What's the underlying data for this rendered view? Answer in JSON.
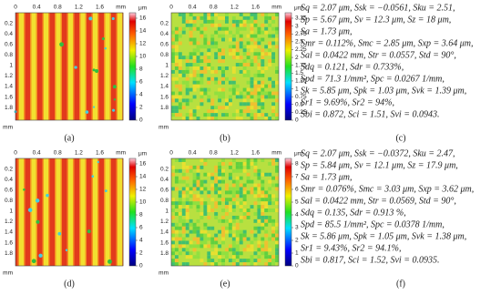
{
  "panels": [
    {
      "caption": "(a)",
      "x_ticks": [
        "0",
        "0.4",
        "0.8",
        "1.2",
        "1.6"
      ],
      "x_unit": "mm",
      "y_ticks": [
        "0.2",
        "0.4",
        "0.6",
        "0.8",
        "1",
        "1.2",
        "1.4",
        "1.6",
        "1.8"
      ],
      "y_unit": "mm",
      "colorbar": {
        "unit": "μm",
        "ticks": [
          "16",
          "14",
          "12",
          "10",
          "8",
          "6",
          "4",
          "2",
          "0"
        ]
      }
    },
    {
      "caption": "(b)",
      "x_ticks": [
        "0",
        "0.4",
        "0.8",
        "1.2",
        "1.6"
      ],
      "x_unit": "mm",
      "y_ticks": [
        "0.2",
        "0.4",
        "0.6",
        "0.8",
        "1",
        "1.2",
        "1.4",
        "1.6",
        "1.8"
      ],
      "y_unit": "mm",
      "colorbar": {
        "unit": "μm",
        "ticks": [
          "3.25",
          "3",
          "2.75",
          "2.5",
          "2.25",
          "2",
          "1.75",
          "1.5",
          "1.25",
          "1",
          "0.75",
          "0.5",
          "0.25",
          "0"
        ]
      }
    },
    {
      "caption": "(d)",
      "x_ticks": [
        "0",
        "0.4",
        "0.8",
        "1.2",
        "1.6"
      ],
      "x_unit": "mm",
      "y_ticks": [
        "0.2",
        "0.4",
        "0.6",
        "0.8",
        "1",
        "1.2",
        "1.4",
        "1.6",
        "1.8"
      ],
      "y_unit": "mm",
      "colorbar": {
        "unit": "μm",
        "ticks": [
          "16",
          "14",
          "12",
          "10",
          "8",
          "6",
          "4",
          "2",
          "0"
        ]
      }
    },
    {
      "caption": "(e)",
      "x_ticks": [
        "0",
        "0.4",
        "0.8",
        "1.2",
        "1.6"
      ],
      "x_unit": "mm",
      "y_ticks": [
        "0.2",
        "0.4",
        "0.6",
        "0.8",
        "1",
        "1.2",
        "1.4",
        "1.6",
        "1.8"
      ],
      "y_unit": "mm",
      "colorbar": {
        "unit": "μm",
        "ticks": [
          "8",
          "7",
          "6",
          "5",
          "4",
          "3",
          "2",
          "1",
          "0"
        ]
      }
    }
  ],
  "parameters": [
    {
      "caption": "(c)",
      "lines": [
        "Sq = 2.07 μm, Ssk = −0.0561, Sku = 2.51,",
        "Sp = 5.67 μm, Sv = 12.3 μm, Sz = 18 μm,",
        "Sa = 1.73 μm,",
        "Smr = 0.112%, Smc = 2.85 μm, Sxp = 3.64 μm,",
        "Sal = 0.0422 mm, Str = 0.0557, Std = 90°,",
        "Sdq = 0.121, Sdr = 0.733%,",
        "Spd = 71.3 1/mm², Spc = 0.0267 1/mm,",
        "Sk = 5.85 μm, Spk = 1.03 μm, Svk = 1.39 μm,",
        "Sr1 = 9.69%, Sr2 = 94%,",
        "Sbi = 0.872, Sci = 1.51, Svi = 0.0943."
      ]
    },
    {
      "caption": "(f)",
      "lines": [
        "Sq = 2.07 μm, Ssk = −0.0372, Sku = 2.47,",
        "Sp = 5.84 μm, Sv = 12.1 μm, Sz = 17.9 μm,",
        "Sa = 1.73 μm,",
        "Smr = 0.076%, Smc = 3.03 μm, Sxp = 3.62 μm,",
        "Sal = 0.0422 mm, Str = 0.0569, Std = 90°,",
        "Sdq = 0.135, Sdr = 0.913 %,",
        "Spd = 85.5 1/mm², Spc = 0.0378 1/mm,",
        "Sk = 5.86 μm, Spk = 1.05 μm, Svk = 1.38 μm,",
        "Sr1 = 9.43%, Sr2 = 94.1%,",
        "Sbi = 0.817, Sci = 1.52, Svi = 0.0935."
      ]
    }
  ]
}
